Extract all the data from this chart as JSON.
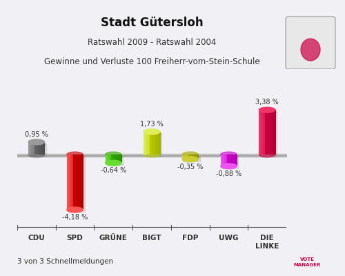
{
  "title": "Stadt Gütersloh",
  "subtitle1": "Ratswahl 2009 - Ratswahl 2004",
  "subtitle2": "Gewinne und Verluste 100 Freiherr-vom-Stein-Schule",
  "footer": "3 von 3 Schnellmeldungen",
  "categories": [
    "CDU",
    "SPD",
    "GRÜNE",
    "BIGT",
    "FDP",
    "UWG",
    "DIE\nLINKE"
  ],
  "values": [
    0.95,
    -4.18,
    -0.64,
    1.73,
    -0.35,
    -0.88,
    3.38
  ],
  "value_labels": [
    "0,95 %",
    "-4,18 %",
    "-0,64 %",
    "1,73 %",
    "-0,35 %",
    "-0,88 %",
    "3,38 %"
  ],
  "bar_colors_dark": [
    "#444444",
    "#aa0000",
    "#228800",
    "#99aa00",
    "#888800",
    "#aa00aa",
    "#aa0033"
  ],
  "bar_colors_mid": [
    "#666666",
    "#cc0000",
    "#33aa00",
    "#bbcc00",
    "#aaaa00",
    "#cc00cc",
    "#cc0044"
  ],
  "bar_colors_light": [
    "#999999",
    "#ff5555",
    "#66dd33",
    "#ddee55",
    "#cccc33",
    "#ee55ee",
    "#ee3366"
  ],
  "background_top": "#f8f8f8",
  "background_bot": "#e0e0e8",
  "figsize": [
    5.0,
    4.0
  ],
  "dpi": 100
}
